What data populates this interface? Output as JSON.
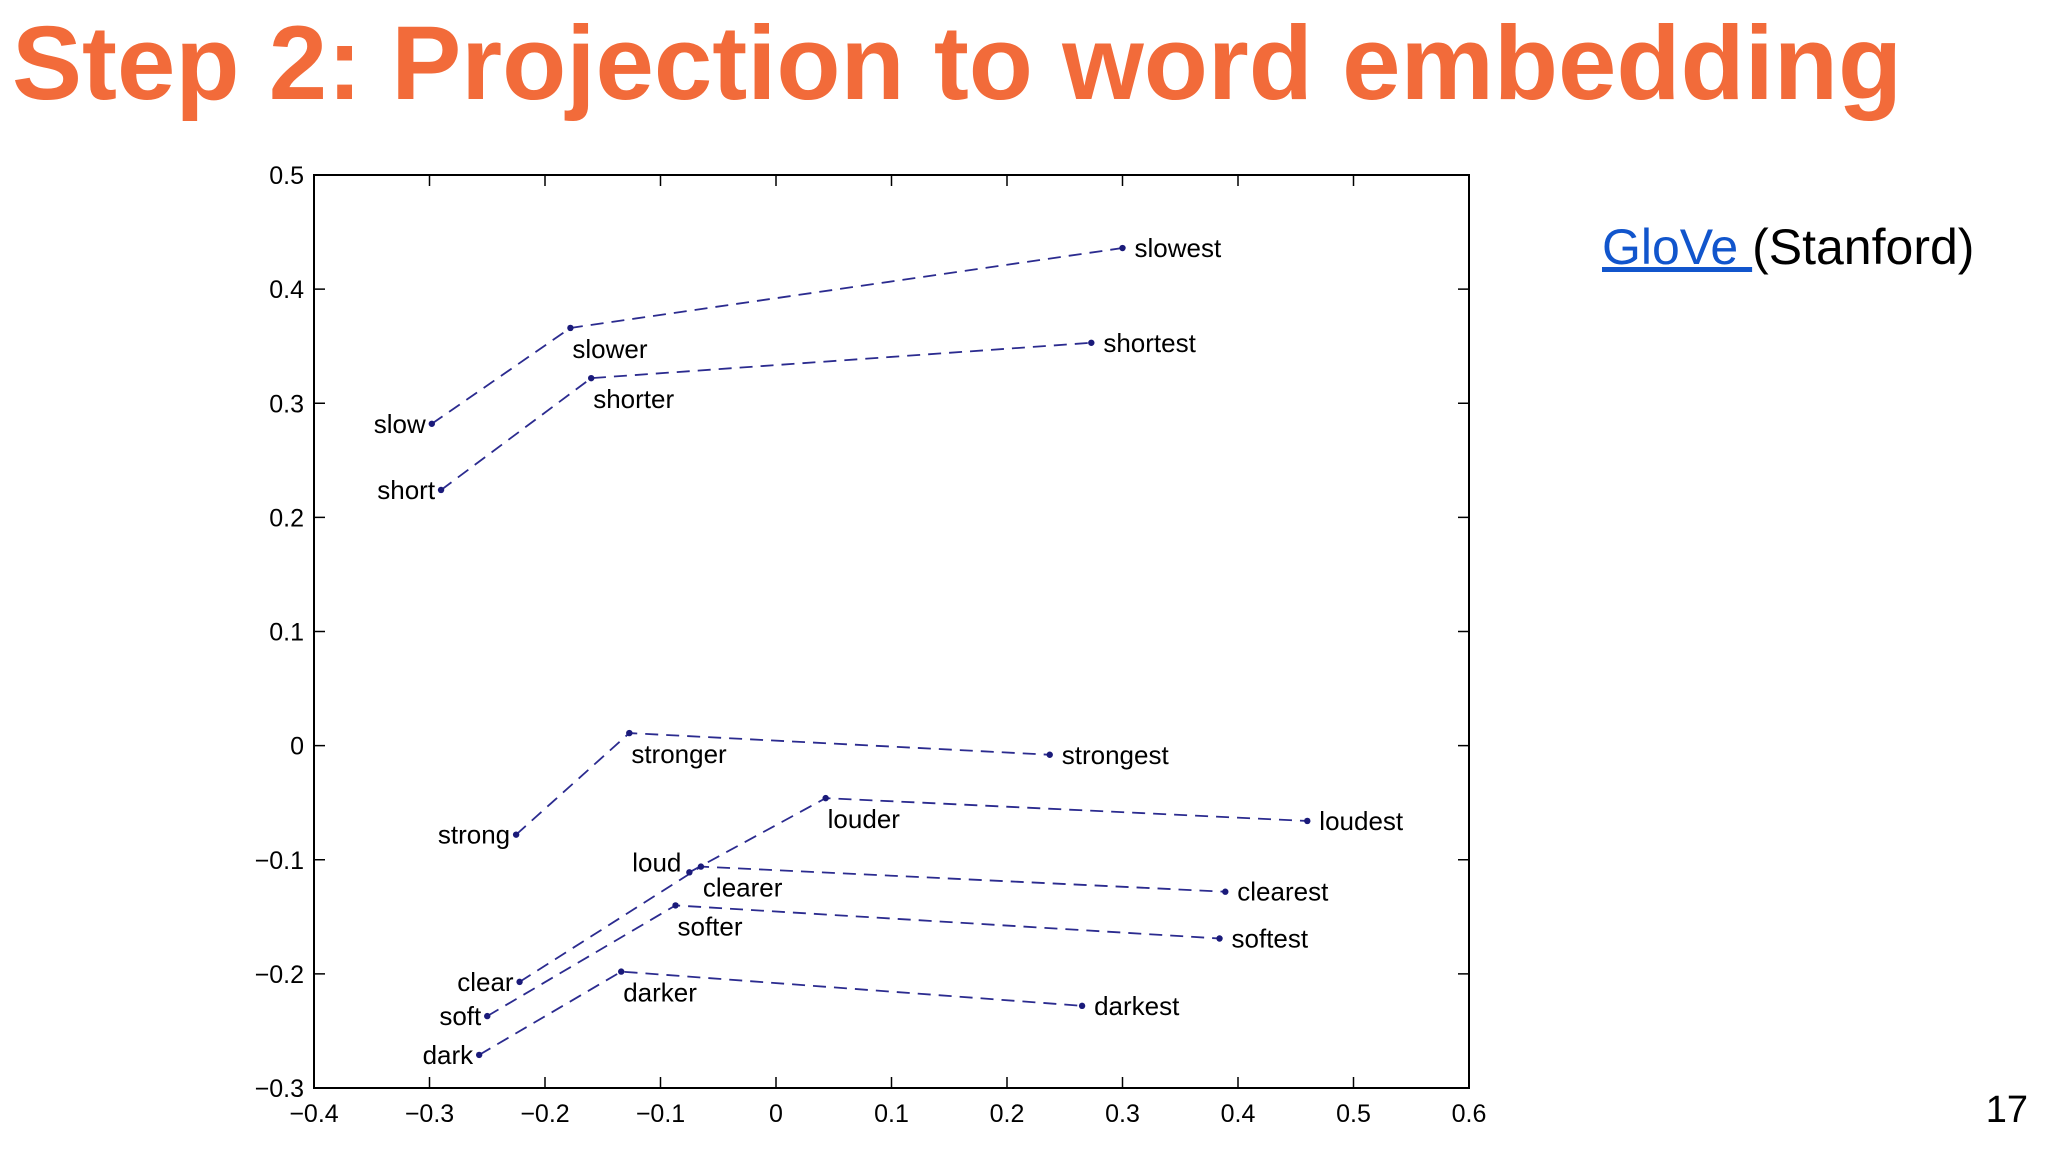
{
  "slide": {
    "title": "Step 2: Projection to word embedding",
    "source_link": "GloVe ",
    "source_suffix": "(Stanford)",
    "page_number": "17"
  },
  "colors": {
    "title": "#F26B3A",
    "link": "#1155CC",
    "series_line": "#2B2B8F",
    "point": "#1A1A7A"
  },
  "chart_data": {
    "type": "scatter",
    "title": "",
    "xlabel": "",
    "ylabel": "",
    "xlim": [
      -0.4,
      0.6
    ],
    "ylim": [
      -0.3,
      0.5
    ],
    "xticks": [
      -0.4,
      -0.3,
      -0.2,
      -0.1,
      0,
      0.1,
      0.2,
      0.3,
      0.4,
      0.5,
      0.6
    ],
    "xtick_labels": [
      "−0.4",
      "−0.3",
      "−0.2",
      "−0.1",
      "0",
      "0.1",
      "0.2",
      "0.3",
      "0.4",
      "0.5",
      "0.6"
    ],
    "yticks": [
      -0.3,
      -0.2,
      -0.1,
      0,
      0.1,
      0.2,
      0.3,
      0.4,
      0.5
    ],
    "ytick_labels": [
      "−0.3",
      "−0.2",
      "−0.1",
      "0",
      "0.1",
      "0.2",
      "0.3",
      "0.4",
      "0.5"
    ],
    "grid": false,
    "line_style": "dashed",
    "points": [
      {
        "word": "slow",
        "x": -0.298,
        "y": 0.282,
        "label_side": "left"
      },
      {
        "word": "slower",
        "x": -0.178,
        "y": 0.366,
        "label_side": "below"
      },
      {
        "word": "slowest",
        "x": 0.3,
        "y": 0.436,
        "label_side": "right"
      },
      {
        "word": "short",
        "x": -0.29,
        "y": 0.224,
        "label_side": "left"
      },
      {
        "word": "shorter",
        "x": -0.16,
        "y": 0.322,
        "label_side": "below"
      },
      {
        "word": "shortest",
        "x": 0.273,
        "y": 0.353,
        "label_side": "right"
      },
      {
        "word": "strong",
        "x": -0.225,
        "y": -0.078,
        "label_side": "left"
      },
      {
        "word": "stronger",
        "x": -0.127,
        "y": 0.011,
        "label_side": "below"
      },
      {
        "word": "strongest",
        "x": 0.237,
        "y": -0.008,
        "label_side": "right"
      },
      {
        "word": "loud",
        "x": -0.075,
        "y": -0.111,
        "label_side": "left-above"
      },
      {
        "word": "louder",
        "x": 0.043,
        "y": -0.046,
        "label_side": "below"
      },
      {
        "word": "loudest",
        "x": 0.46,
        "y": -0.066,
        "label_side": "right"
      },
      {
        "word": "clear",
        "x": -0.222,
        "y": -0.207,
        "label_side": "left"
      },
      {
        "word": "clearer",
        "x": -0.065,
        "y": -0.106,
        "label_side": "below"
      },
      {
        "word": "clearest",
        "x": 0.389,
        "y": -0.128,
        "label_side": "right"
      },
      {
        "word": "soft",
        "x": -0.25,
        "y": -0.237,
        "label_side": "left"
      },
      {
        "word": "softer",
        "x": -0.087,
        "y": -0.14,
        "label_side": "below"
      },
      {
        "word": "softest",
        "x": 0.384,
        "y": -0.169,
        "label_side": "right"
      },
      {
        "word": "dark",
        "x": -0.257,
        "y": -0.271,
        "label_side": "left"
      },
      {
        "word": "darker",
        "x": -0.134,
        "y": -0.198,
        "label_side": "below"
      },
      {
        "word": "darkest",
        "x": 0.265,
        "y": -0.228,
        "label_side": "right"
      }
    ],
    "chains": [
      [
        "slow",
        "slower",
        "slowest"
      ],
      [
        "short",
        "shorter",
        "shortest"
      ],
      [
        "strong",
        "stronger",
        "strongest"
      ],
      [
        "loud",
        "louder",
        "loudest"
      ],
      [
        "clear",
        "clearer",
        "clearest"
      ],
      [
        "soft",
        "softer",
        "softest"
      ],
      [
        "dark",
        "darker",
        "darkest"
      ]
    ]
  }
}
